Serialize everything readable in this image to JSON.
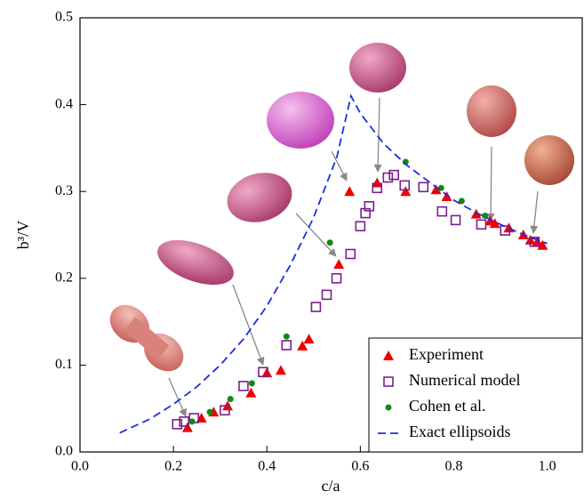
{
  "chart_data": {
    "type": "scatter",
    "xlabel": "c/a",
    "ylabel": "b³/V",
    "xlim": [
      0,
      1.075
    ],
    "ylim": [
      0,
      0.5
    ],
    "xticks": [
      {
        "value": 0,
        "label": "0.0"
      },
      {
        "value": 0.2,
        "label": "0.2"
      },
      {
        "value": 0.4,
        "label": "0.4"
      },
      {
        "value": 0.6,
        "label": "0.6"
      },
      {
        "value": 0.8,
        "label": "0.8"
      },
      {
        "value": 1,
        "label": "1.0"
      }
    ],
    "yticks": [
      {
        "value": 0,
        "label": "0.0"
      },
      {
        "value": 0.1,
        "label": "0.1"
      },
      {
        "value": 0.2,
        "label": "0.2"
      },
      {
        "value": 0.3,
        "label": "0.3"
      },
      {
        "value": 0.4,
        "label": "0.4"
      },
      {
        "value": 0.5,
        "label": "0.5"
      }
    ],
    "legend": "lower right",
    "series": [
      {
        "name": "Experiment",
        "color": "#ee0000",
        "marker": "triangle",
        "x": [
          0.23,
          0.26,
          0.286,
          0.316,
          0.366,
          0.4,
          0.43,
          0.476,
          0.49,
          0.554,
          0.577,
          0.636,
          0.697,
          0.762,
          0.785,
          0.848,
          0.878,
          0.888,
          0.918,
          0.949,
          0.964,
          0.979,
          0.99
        ],
        "values": [
          0.028,
          0.039,
          0.046,
          0.053,
          0.068,
          0.091,
          0.094,
          0.122,
          0.13,
          0.216,
          0.3,
          0.31,
          0.3,
          0.302,
          0.294,
          0.274,
          0.266,
          0.263,
          0.258,
          0.25,
          0.244,
          0.242,
          0.238
        ]
      },
      {
        "name": "Numerical model",
        "color": "#7a1f8f",
        "marker": "square",
        "x": [
          0.208,
          0.223,
          0.244,
          0.31,
          0.35,
          0.392,
          0.442,
          0.505,
          0.528,
          0.549,
          0.579,
          0.6,
          0.611,
          0.619,
          0.636,
          0.659,
          0.672,
          0.695,
          0.735,
          0.775,
          0.804,
          0.859,
          0.91,
          0.973
        ],
        "values": [
          0.032,
          0.035,
          0.039,
          0.048,
          0.076,
          0.092,
          0.123,
          0.167,
          0.181,
          0.2,
          0.228,
          0.26,
          0.275,
          0.283,
          0.304,
          0.316,
          0.319,
          0.307,
          0.305,
          0.277,
          0.267,
          0.262,
          0.255,
          0.242
        ]
      },
      {
        "name": "Cohen et al.",
        "color": "#118811",
        "marker": "circle",
        "x": [
          0.24,
          0.278,
          0.322,
          0.368,
          0.442,
          0.535,
          0.697,
          0.773,
          0.817,
          0.867
        ],
        "values": [
          0.035,
          0.046,
          0.061,
          0.079,
          0.133,
          0.241,
          0.334,
          0.304,
          0.289,
          0.272
        ]
      },
      {
        "name": "Exact ellipsoids",
        "color": "#1a2fe0",
        "marker": "dashed-line",
        "x": [
          0.085,
          0.15,
          0.2,
          0.25,
          0.3,
          0.35,
          0.4,
          0.45,
          0.5,
          0.55,
          0.58,
          0.6,
          0.65,
          0.7,
          0.75,
          0.8,
          0.85,
          0.9,
          0.95,
          1.0
        ],
        "values": [
          0.022,
          0.038,
          0.055,
          0.075,
          0.1,
          0.13,
          0.168,
          0.215,
          0.27,
          0.34,
          0.41,
          0.39,
          0.355,
          0.33,
          0.31,
          0.29,
          0.275,
          0.262,
          0.25,
          0.24
        ]
      }
    ]
  }
}
